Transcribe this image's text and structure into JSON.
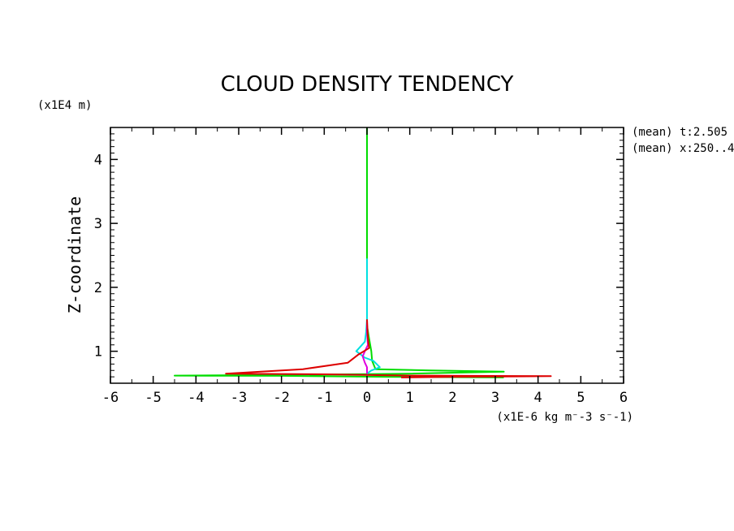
{
  "chart_data": {
    "type": "line",
    "title": "CLOUD DENSITY TENDENCY",
    "ylabel": "Z-coordinate",
    "yunit": "(x1E4 m)",
    "xunit": "(x1E-6 kg m⁻-3 s⁻-1)",
    "annotations": [
      "(mean) t:2.505",
      "(mean) x:250..4"
    ],
    "xlim": [
      -6,
      6
    ],
    "ylim": [
      0.5,
      4.5
    ],
    "xticks": [
      "-6",
      "-5",
      "-4",
      "-3",
      "-2",
      "-1",
      "0",
      "1",
      "2",
      "3",
      "4",
      "5",
      "6"
    ],
    "xtick_values": [
      -6,
      -5,
      -4,
      -3,
      -2,
      -1,
      0,
      1,
      2,
      3,
      4,
      5,
      6
    ],
    "yticks": [
      "1",
      "2",
      "3",
      "4"
    ],
    "ytick_values": [
      1,
      2,
      3,
      4
    ],
    "grid": false,
    "series": [
      {
        "color": "#00dd00",
        "points": [
          [
            0,
            4.5
          ],
          [
            0,
            1.4
          ],
          [
            0.05,
            1.2
          ],
          [
            0.1,
            1.0
          ],
          [
            0.12,
            0.85
          ],
          [
            0.2,
            0.72
          ],
          [
            1.5,
            0.7
          ],
          [
            3.2,
            0.68
          ],
          [
            1.0,
            0.65
          ],
          [
            -2.0,
            0.63
          ],
          [
            -4.5,
            0.62
          ],
          [
            -2.0,
            0.615
          ],
          [
            0.5,
            0.6
          ],
          [
            3.2,
            0.59
          ]
        ]
      },
      {
        "color": "#00e0e0",
        "points": [
          [
            0,
            2.45
          ],
          [
            0,
            1.5
          ],
          [
            -0.02,
            1.3
          ],
          [
            -0.05,
            1.15
          ],
          [
            -0.25,
            1.0
          ],
          [
            -0.05,
            0.9
          ],
          [
            0.15,
            0.85
          ],
          [
            0.3,
            0.75
          ],
          [
            0.1,
            0.7
          ],
          [
            0,
            0.65
          ]
        ]
      },
      {
        "color": "#e000e0",
        "points": [
          [
            0,
            1.45
          ],
          [
            0,
            1.3
          ],
          [
            0.02,
            1.1
          ],
          [
            -0.05,
            1.0
          ],
          [
            -0.1,
            0.92
          ],
          [
            -0.05,
            0.82
          ],
          [
            0,
            0.75
          ],
          [
            0,
            0.65
          ]
        ]
      },
      {
        "color": "#dd0000",
        "points": [
          [
            0,
            1.5
          ],
          [
            0.02,
            1.2
          ],
          [
            0.05,
            1.05
          ],
          [
            -0.2,
            0.95
          ],
          [
            -0.45,
            0.82
          ],
          [
            -1.5,
            0.72
          ],
          [
            -3.3,
            0.65
          ],
          [
            -1.0,
            0.64
          ],
          [
            1.0,
            0.62
          ],
          [
            4.3,
            0.61
          ],
          [
            2.0,
            0.6
          ],
          [
            0.8,
            0.59
          ]
        ]
      }
    ]
  }
}
